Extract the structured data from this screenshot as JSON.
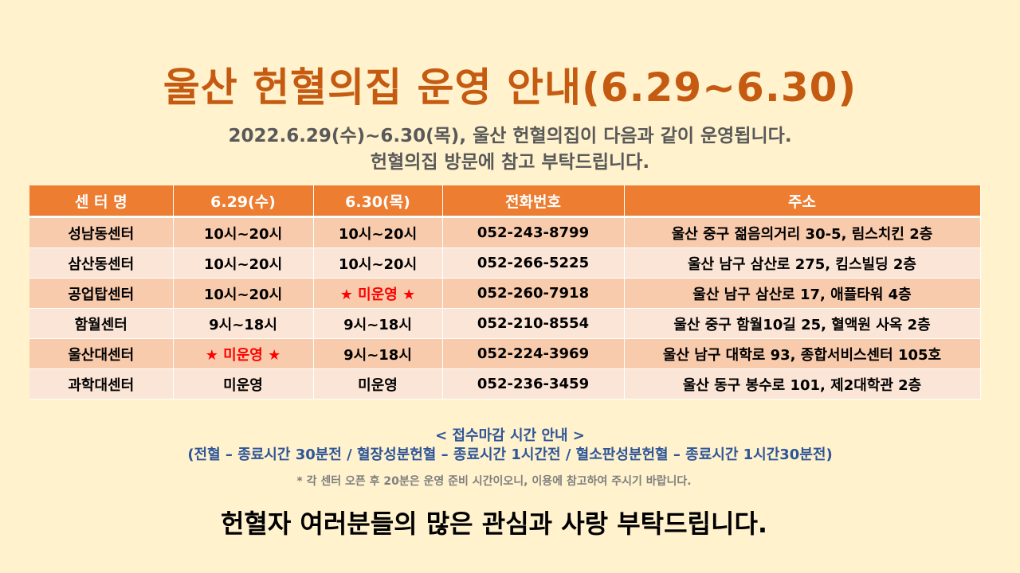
{
  "title": "울산 헌혈의집 운영 안내(6.29~6.30)",
  "subtitle_line1": "2022.6.29(수)~6.30(목), 울산 헌혈의집이 다음과 같이 운영됩니다.",
  "subtitle_line2": "헌혈의집 방문에 참고 부탁드립니다.",
  "table": {
    "headers": [
      "센 터 명",
      "6.29(수)",
      "6.30(목)",
      "전화번호",
      "주소"
    ],
    "rows": [
      [
        "성남동센터",
        "10시~20시",
        "10시~20시",
        "052-243-8799",
        "울산 중구 젊음의거리 30-5, 림스치킨 2층"
      ],
      [
        "삼산동센터",
        "10시~20시",
        "10시~20시",
        "052-266-5225",
        "울산 남구 삼산로 275, 킴스빌딩 2층"
      ],
      [
        "공업탑센터",
        "10시~20시",
        "★ 미운영 ★",
        "052-260-7918",
        "울산 남구 삼산로 17, 애플타워 4층"
      ],
      [
        "함월센터",
        "9시~18시",
        "9시~18시",
        "052-210-8554",
        "울산 중구 함월10길 25, 혈액원 사옥 2층"
      ],
      [
        "울산대센터",
        "★ 미운영 ★",
        "9시~18시",
        "052-224-3969",
        "울산 남구 대학로 93, 종합서비스센터 105호"
      ],
      [
        "과학대센터",
        "미운영",
        "미운영",
        "052-236-3459",
        "울산 동구 봉수로 101, 제2대학관 2층"
      ]
    ],
    "highlight_color": "#ff0000"
  },
  "notice": {
    "heading": "< 접수마감 시간 안내 >",
    "detail": "(전혈 – 종료시간 30분전 / 혈장성분헌혈 – 종료시간 1시간전 / 혈소판성분헌혈 – 종료시간 1시간30분전)",
    "footnote": "* 각 센터 오픈 후 20분은 운영 준비 시간이오니, 이용에 참고하여 주시기 바랍니다."
  },
  "closing": "헌혈자 여러분들의 많은 관심과 사랑 부탁드립니다.",
  "colors": {
    "background": "#fff2cd",
    "title": "#c55a11",
    "header_fill": "#ed7d31",
    "row_odd": "#f8cbad",
    "row_even": "#fbe5d6",
    "notice_text": "#2e5597"
  }
}
